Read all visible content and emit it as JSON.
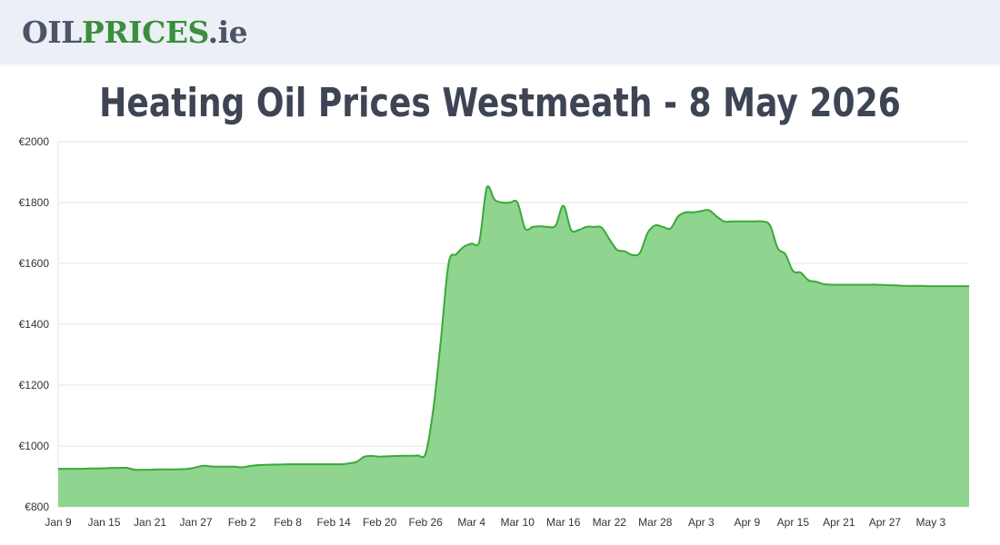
{
  "header": {
    "logo_part1": "OIL",
    "logo_part2": "PRICES",
    "logo_part3": ".ie"
  },
  "page_title": "Heating Oil Prices Westmeath - 8 May 2026",
  "colors": {
    "line": "#3aa93a",
    "fill": "#8fd48f",
    "grid": "#e6e6e6",
    "title": "#3d4555",
    "logo_dark": "#4a5568",
    "logo_green": "#3a8f3a"
  },
  "chart_data": {
    "type": "area",
    "title": "",
    "xlabel": "",
    "ylabel": "",
    "ylim": [
      800,
      2000
    ],
    "grid": true,
    "yticks": [
      800,
      1000,
      1200,
      1400,
      1600,
      1800,
      2000
    ],
    "ytick_labels": [
      "€800",
      "€1000",
      "€1200",
      "€1400",
      "€1600",
      "€1800",
      "€2000"
    ],
    "xtick_labels": [
      "Jan 9",
      "Jan 15",
      "Jan 21",
      "Jan 27",
      "Feb 2",
      "Feb 8",
      "Feb 14",
      "Feb 20",
      "Feb 26",
      "Mar 4",
      "Mar 10",
      "Mar 16",
      "Mar 22",
      "Mar 28",
      "Apr 3",
      "Apr 9",
      "Apr 15",
      "Apr 21",
      "Apr 27",
      "May 3"
    ],
    "x": [
      "Jan 9",
      "Jan 10",
      "Jan 11",
      "Jan 12",
      "Jan 13",
      "Jan 14",
      "Jan 15",
      "Jan 16",
      "Jan 17",
      "Jan 18",
      "Jan 19",
      "Jan 20",
      "Jan 21",
      "Jan 22",
      "Jan 23",
      "Jan 24",
      "Jan 25",
      "Jan 26",
      "Jan 27",
      "Jan 28",
      "Jan 29",
      "Jan 30",
      "Jan 31",
      "Feb 1",
      "Feb 2",
      "Feb 3",
      "Feb 4",
      "Feb 5",
      "Feb 6",
      "Feb 7",
      "Feb 8",
      "Feb 9",
      "Feb 10",
      "Feb 11",
      "Feb 12",
      "Feb 13",
      "Feb 14",
      "Feb 15",
      "Feb 16",
      "Feb 17",
      "Feb 18",
      "Feb 19",
      "Feb 20",
      "Feb 21",
      "Feb 22",
      "Feb 23",
      "Feb 24",
      "Feb 25",
      "Feb 26",
      "Feb 27",
      "Feb 28",
      "Mar 1",
      "Mar 2",
      "Mar 3",
      "Mar 4",
      "Mar 5",
      "Mar 6",
      "Mar 7",
      "Mar 8",
      "Mar 9",
      "Mar 10",
      "Mar 11",
      "Mar 12",
      "Mar 13",
      "Mar 14",
      "Mar 15",
      "Mar 16",
      "Mar 17",
      "Mar 18",
      "Mar 19",
      "Mar 20",
      "Mar 21",
      "Mar 22",
      "Mar 23",
      "Mar 24",
      "Mar 25",
      "Mar 26",
      "Mar 27",
      "Mar 28",
      "Mar 29",
      "Mar 30",
      "Mar 31",
      "Apr 1",
      "Apr 2",
      "Apr 3",
      "Apr 4",
      "Apr 5",
      "Apr 6",
      "Apr 7",
      "Apr 8",
      "Apr 9",
      "Apr 10",
      "Apr 11",
      "Apr 12",
      "Apr 13",
      "Apr 14",
      "Apr 15",
      "Apr 16",
      "Apr 17",
      "Apr 18",
      "Apr 19",
      "Apr 20",
      "Apr 21",
      "Apr 22",
      "Apr 23",
      "Apr 24",
      "Apr 25",
      "Apr 26",
      "Apr 27",
      "Apr 28",
      "Apr 29",
      "Apr 30",
      "May 1",
      "May 2",
      "May 3",
      "May 4",
      "May 5",
      "May 6",
      "May 7",
      "May 8"
    ],
    "values": [
      925,
      925,
      925,
      925,
      926,
      926,
      927,
      928,
      928,
      928,
      922,
      922,
      922,
      923,
      923,
      923,
      924,
      925,
      930,
      935,
      933,
      932,
      932,
      932,
      930,
      934,
      937,
      938,
      939,
      939,
      940,
      940,
      940,
      940,
      940,
      940,
      940,
      940,
      943,
      948,
      965,
      967,
      965,
      966,
      967,
      968,
      968,
      969,
      975,
      1120,
      1350,
      1600,
      1630,
      1655,
      1665,
      1670,
      1850,
      1810,
      1800,
      1800,
      1800,
      1715,
      1720,
      1722,
      1720,
      1725,
      1790,
      1710,
      1710,
      1720,
      1720,
      1718,
      1680,
      1645,
      1640,
      1628,
      1635,
      1700,
      1725,
      1720,
      1715,
      1755,
      1768,
      1768,
      1772,
      1775,
      1755,
      1738,
      1738,
      1738,
      1738,
      1738,
      1738,
      1725,
      1650,
      1630,
      1575,
      1570,
      1545,
      1540,
      1532,
      1530,
      1530,
      1530,
      1530,
      1530,
      1530,
      1530,
      1529,
      1528,
      1527,
      1526,
      1526,
      1526,
      1525,
      1525,
      1525,
      1525,
      1525,
      1525
    ]
  }
}
